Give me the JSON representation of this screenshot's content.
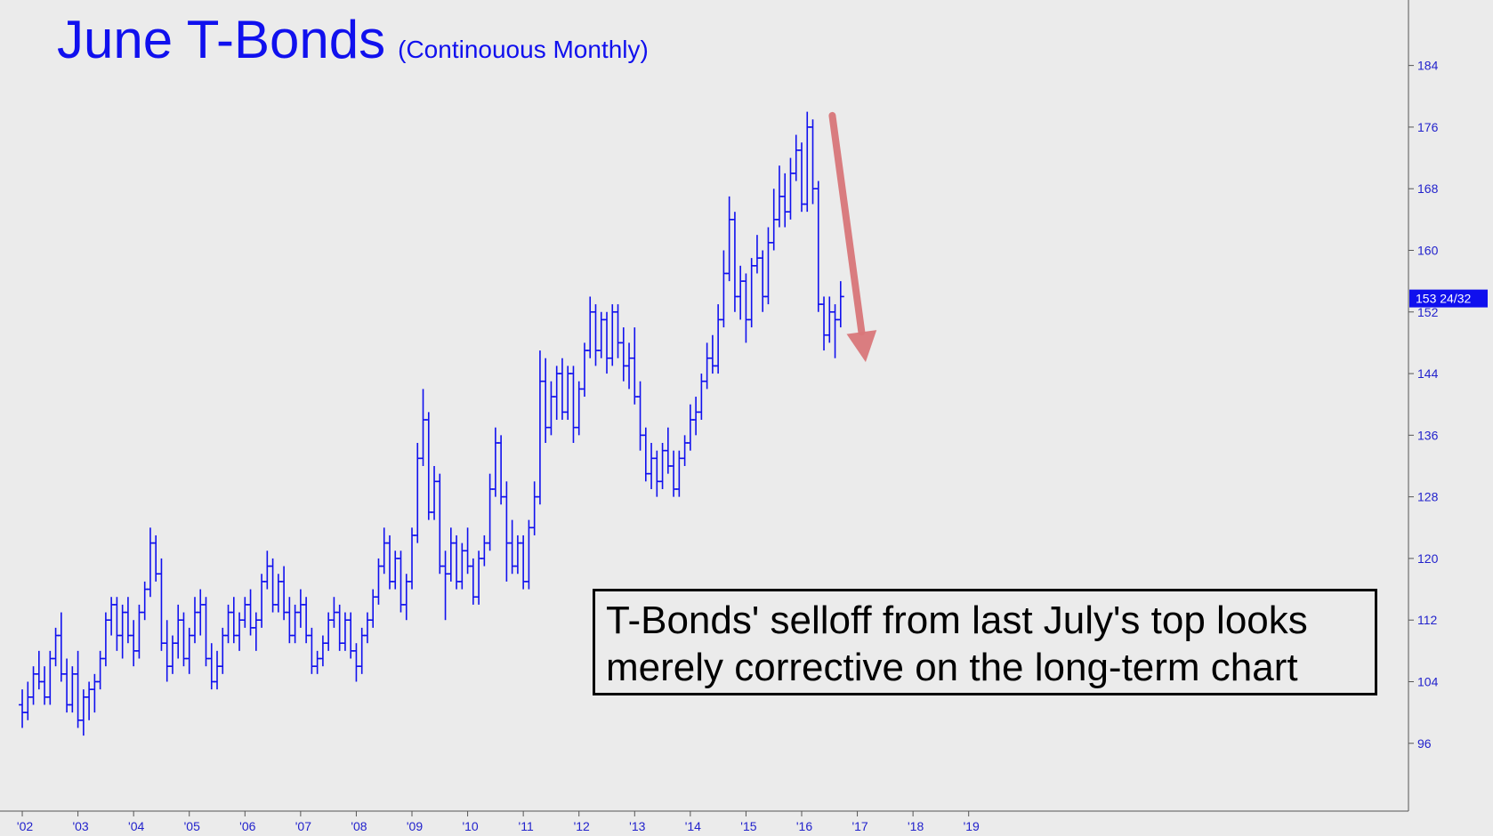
{
  "chart_data": {
    "type": "ohlc",
    "title": "June T-Bonds",
    "subtitle": "(Continouous Monthly)",
    "x_tick_labels": [
      "'02",
      "'03",
      "'04",
      "'05",
      "'06",
      "'07",
      "'08",
      "'09",
      "'10",
      "'11",
      "'12",
      "'13",
      "'14",
      "'15",
      "'16",
      "'17",
      "'18",
      "'19"
    ],
    "x_range": [
      2001.6,
      2026.9
    ],
    "y_ticks": [
      96,
      104,
      112,
      120,
      128,
      136,
      144,
      152,
      160,
      168,
      176,
      184
    ],
    "ylim": [
      87.2,
      192.5
    ],
    "y_axis_side": "right",
    "grid": false,
    "last_price": 153.75,
    "last_price_label": "153 24/32",
    "colors": {
      "bars": "#1010ee",
      "arrow": "#d9777a",
      "axis": "#555555",
      "background": "#ebebeb",
      "last_price_flag": "#1010ee"
    },
    "trend_arrow": {
      "from": {
        "date": 2016.55,
        "value": 177.5
      },
      "to": {
        "date": 2017.15,
        "value": 145.5
      }
    },
    "series": [
      {
        "bars": [
          [
            2002.0,
            101,
            103,
            98,
            100
          ],
          [
            2002.1,
            100,
            104,
            99,
            102
          ],
          [
            2002.2,
            102,
            106,
            101,
            105
          ],
          [
            2002.3,
            105,
            108,
            103,
            104
          ],
          [
            2002.4,
            104,
            106,
            101,
            102
          ],
          [
            2002.5,
            102,
            108,
            101,
            107
          ],
          [
            2002.6,
            107,
            111,
            106,
            110
          ],
          [
            2002.7,
            110,
            113,
            104,
            105
          ],
          [
            2002.8,
            105,
            107,
            100,
            101
          ],
          [
            2002.9,
            101,
            106,
            100,
            105
          ],
          [
            2003.0,
            105,
            108,
            98,
            99
          ],
          [
            2003.1,
            99,
            103,
            97,
            102
          ],
          [
            2003.2,
            102,
            104,
            99,
            103
          ],
          [
            2003.3,
            103,
            105,
            100,
            104
          ],
          [
            2003.4,
            104,
            108,
            103,
            107
          ],
          [
            2003.5,
            107,
            113,
            106,
            112
          ],
          [
            2003.6,
            112,
            115,
            110,
            114
          ],
          [
            2003.7,
            114,
            115,
            108,
            110
          ],
          [
            2003.8,
            110,
            114,
            107,
            113
          ],
          [
            2003.9,
            113,
            115,
            109,
            110
          ],
          [
            2004.0,
            110,
            112,
            106,
            108
          ],
          [
            2004.1,
            108,
            114,
            107,
            113
          ],
          [
            2004.2,
            113,
            117,
            112,
            116
          ],
          [
            2004.3,
            116,
            124,
            115,
            122
          ],
          [
            2004.4,
            122,
            123,
            117,
            118
          ],
          [
            2004.5,
            118,
            120,
            108,
            109
          ],
          [
            2004.6,
            109,
            112,
            104,
            106
          ],
          [
            2004.7,
            106,
            110,
            105,
            109
          ],
          [
            2004.8,
            109,
            114,
            107,
            112
          ],
          [
            2004.9,
            112,
            113,
            106,
            107
          ],
          [
            2005.0,
            107,
            111,
            105,
            110
          ],
          [
            2005.1,
            110,
            115,
            109,
            113
          ],
          [
            2005.2,
            113,
            116,
            110,
            114
          ],
          [
            2005.3,
            114,
            115,
            106,
            107
          ],
          [
            2005.4,
            107,
            109,
            103,
            104
          ],
          [
            2005.5,
            104,
            108,
            103,
            106
          ],
          [
            2005.6,
            106,
            111,
            105,
            110
          ],
          [
            2005.7,
            110,
            114,
            109,
            113
          ],
          [
            2005.8,
            113,
            115,
            109,
            110
          ],
          [
            2005.9,
            110,
            113,
            108,
            112
          ],
          [
            2006.0,
            112,
            115,
            111,
            114
          ],
          [
            2006.1,
            114,
            116,
            110,
            111
          ],
          [
            2006.2,
            111,
            113,
            108,
            112
          ],
          [
            2006.3,
            112,
            118,
            111,
            117
          ],
          [
            2006.4,
            117,
            121,
            116,
            119
          ],
          [
            2006.5,
            119,
            120,
            113,
            114
          ],
          [
            2006.6,
            114,
            118,
            113,
            117
          ],
          [
            2006.7,
            117,
            119,
            112,
            113
          ],
          [
            2006.8,
            113,
            115,
            109,
            110
          ],
          [
            2006.9,
            110,
            114,
            109,
            113
          ],
          [
            2007.0,
            113,
            116,
            111,
            114
          ],
          [
            2007.1,
            114,
            115,
            109,
            110
          ],
          [
            2007.2,
            110,
            111,
            105,
            106
          ],
          [
            2007.3,
            106,
            108,
            105,
            107
          ],
          [
            2007.4,
            107,
            110,
            106,
            109
          ],
          [
            2007.5,
            109,
            113,
            108,
            112
          ],
          [
            2007.6,
            112,
            115,
            111,
            113
          ],
          [
            2007.7,
            113,
            114,
            108,
            109
          ],
          [
            2007.8,
            109,
            113,
            108,
            112
          ],
          [
            2007.9,
            112,
            113,
            107,
            108
          ],
          [
            2008.0,
            108,
            109,
            104,
            106
          ],
          [
            2008.1,
            106,
            111,
            105,
            110
          ],
          [
            2008.2,
            110,
            113,
            109,
            112
          ],
          [
            2008.3,
            112,
            116,
            111,
            115
          ],
          [
            2008.4,
            115,
            120,
            114,
            119
          ],
          [
            2008.5,
            119,
            124,
            118,
            122
          ],
          [
            2008.6,
            122,
            123,
            116,
            117
          ],
          [
            2008.7,
            117,
            121,
            116,
            120
          ],
          [
            2008.8,
            120,
            121,
            113,
            114
          ],
          [
            2008.9,
            114,
            118,
            112,
            117
          ],
          [
            2009.0,
            117,
            124,
            116,
            123
          ],
          [
            2009.1,
            123,
            135,
            122,
            133
          ],
          [
            2009.2,
            133,
            142,
            132,
            138
          ],
          [
            2009.3,
            138,
            139,
            125,
            126
          ],
          [
            2009.4,
            126,
            132,
            125,
            130
          ],
          [
            2009.5,
            130,
            131,
            118,
            119
          ],
          [
            2009.6,
            119,
            121,
            112,
            118
          ],
          [
            2009.7,
            118,
            124,
            117,
            122
          ],
          [
            2009.8,
            122,
            123,
            116,
            117
          ],
          [
            2009.9,
            117,
            122,
            116,
            121
          ],
          [
            2010.0,
            121,
            124,
            118,
            119
          ],
          [
            2010.1,
            119,
            120,
            114,
            115
          ],
          [
            2010.2,
            115,
            121,
            114,
            120
          ],
          [
            2010.3,
            120,
            123,
            119,
            122
          ],
          [
            2010.4,
            122,
            131,
            121,
            129
          ],
          [
            2010.5,
            129,
            137,
            128,
            135
          ],
          [
            2010.6,
            135,
            136,
            127,
            128
          ],
          [
            2010.7,
            128,
            130,
            117,
            122
          ],
          [
            2010.8,
            122,
            125,
            118,
            119
          ],
          [
            2010.9,
            119,
            123,
            118,
            122
          ],
          [
            2011.0,
            122,
            123,
            116,
            117
          ],
          [
            2011.1,
            117,
            125,
            116,
            124
          ],
          [
            2011.2,
            124,
            130,
            123,
            128
          ],
          [
            2011.3,
            128,
            147,
            127,
            143
          ],
          [
            2011.4,
            143,
            146,
            135,
            137
          ],
          [
            2011.5,
            137,
            143,
            136,
            141
          ],
          [
            2011.6,
            141,
            145,
            138,
            144
          ],
          [
            2011.7,
            144,
            146,
            138,
            139
          ],
          [
            2011.8,
            139,
            145,
            138,
            144
          ],
          [
            2011.9,
            144,
            145,
            135,
            137
          ],
          [
            2012.0,
            137,
            143,
            136,
            142
          ],
          [
            2012.1,
            142,
            148,
            141,
            147
          ],
          [
            2012.2,
            147,
            154,
            146,
            152
          ],
          [
            2012.3,
            152,
            153,
            145,
            147
          ],
          [
            2012.4,
            147,
            152,
            146,
            151
          ],
          [
            2012.5,
            151,
            152,
            144,
            146
          ],
          [
            2012.6,
            146,
            153,
            145,
            152
          ],
          [
            2012.7,
            152,
            153,
            146,
            148
          ],
          [
            2012.8,
            148,
            150,
            143,
            145
          ],
          [
            2012.9,
            145,
            148,
            142,
            146
          ],
          [
            2013.0,
            146,
            150,
            140,
            141
          ],
          [
            2013.1,
            141,
            143,
            134,
            136
          ],
          [
            2013.2,
            136,
            137,
            130,
            131
          ],
          [
            2013.3,
            131,
            135,
            129,
            133
          ],
          [
            2013.4,
            133,
            134,
            128,
            130
          ],
          [
            2013.5,
            130,
            135,
            129,
            134
          ],
          [
            2013.6,
            134,
            137,
            131,
            132
          ],
          [
            2013.7,
            132,
            134,
            128,
            129
          ],
          [
            2013.8,
            129,
            134,
            128,
            133
          ],
          [
            2013.9,
            133,
            136,
            132,
            135
          ],
          [
            2014.0,
            135,
            140,
            134,
            138
          ],
          [
            2014.1,
            138,
            141,
            136,
            139
          ],
          [
            2014.2,
            139,
            144,
            138,
            143
          ],
          [
            2014.3,
            143,
            148,
            142,
            146
          ],
          [
            2014.4,
            146,
            149,
            144,
            145
          ],
          [
            2014.5,
            145,
            153,
            144,
            151
          ],
          [
            2014.6,
            151,
            160,
            150,
            157
          ],
          [
            2014.7,
            157,
            167,
            156,
            164
          ],
          [
            2014.8,
            164,
            165,
            152,
            154
          ],
          [
            2014.9,
            154,
            158,
            151,
            156
          ],
          [
            2015.0,
            156,
            157,
            148,
            151
          ],
          [
            2015.1,
            151,
            159,
            150,
            158
          ],
          [
            2015.2,
            158,
            162,
            157,
            159
          ],
          [
            2015.3,
            159,
            160,
            152,
            154
          ],
          [
            2015.4,
            154,
            163,
            153,
            161
          ],
          [
            2015.5,
            161,
            168,
            160,
            164
          ],
          [
            2015.6,
            164,
            171,
            163,
            167
          ],
          [
            2015.7,
            167,
            170,
            163,
            165
          ],
          [
            2015.8,
            165,
            172,
            164,
            170
          ],
          [
            2015.9,
            170,
            175,
            169,
            173
          ],
          [
            2016.0,
            173,
            174,
            165,
            166
          ],
          [
            2016.1,
            166,
            178,
            165,
            176
          ],
          [
            2016.2,
            176,
            177,
            166,
            168
          ],
          [
            2016.3,
            168,
            169,
            152,
            153
          ],
          [
            2016.4,
            153,
            154,
            147,
            149
          ],
          [
            2016.5,
            149,
            154,
            148,
            152
          ],
          [
            2016.6,
            152,
            153,
            146,
            151
          ],
          [
            2016.7,
            151,
            156,
            150,
            154
          ]
        ]
      }
    ]
  },
  "annotation": {
    "line1": "T-Bonds' selloff from last July's top looks",
    "line2": "merely corrective on the long-term chart"
  }
}
